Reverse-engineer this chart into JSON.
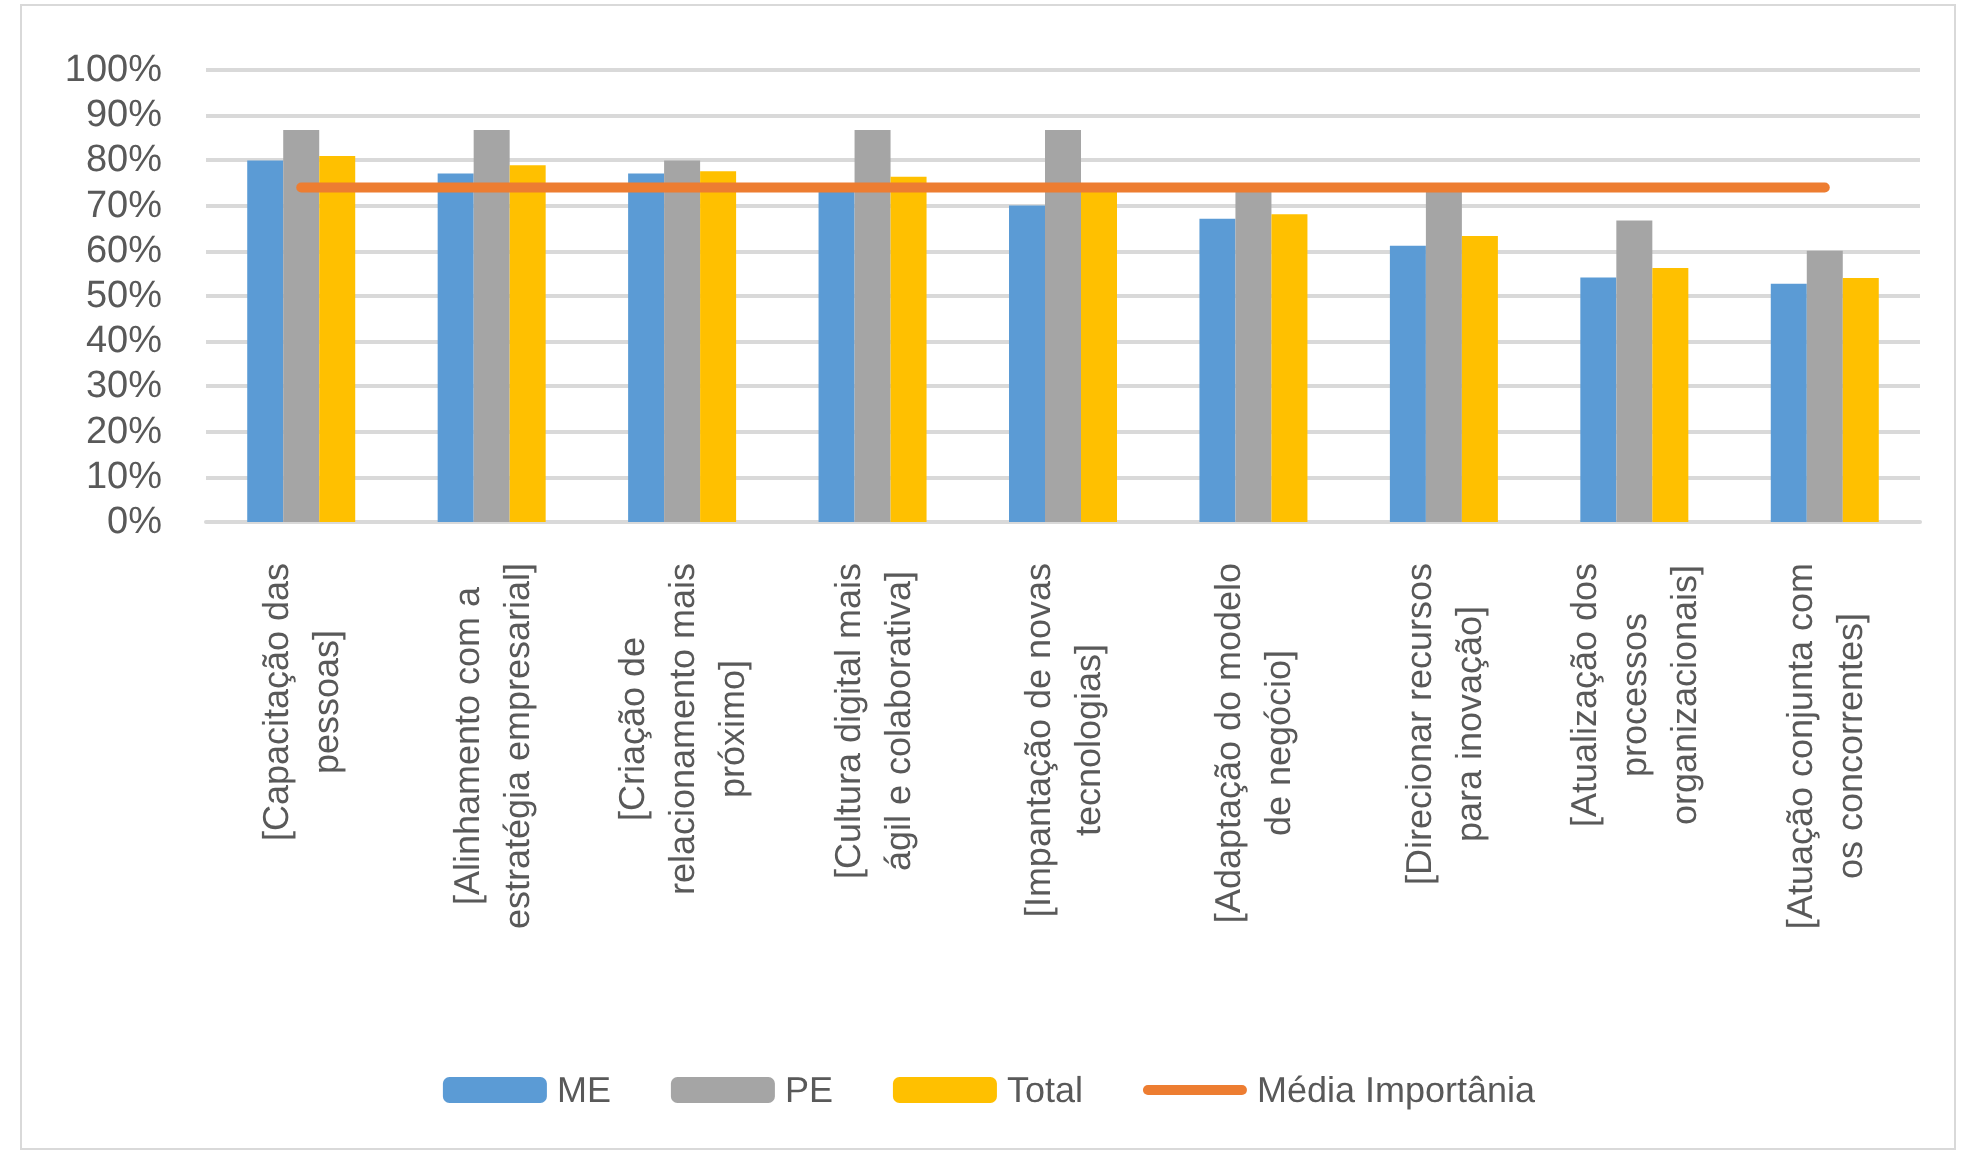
{
  "chart_data": {
    "type": "bar",
    "categories": [
      "[Capacitação das pessoas]",
      "[Alinhamento com a estratégia empresarial]",
      "[Criação de relacionamento mais próximo]",
      "[Cultura digital mais ágil e colaborativa]",
      "[Impantação de novas tecnologias]",
      "[Adaptação do modelo de negócio]",
      "[Direcionar recursos para inovação]",
      "[Atualização dos processos organizacionais]",
      "[Atuação conjunta com os concorrentes]"
    ],
    "series": [
      {
        "name": "ME",
        "color": "#5b9bd5",
        "values": [
          80,
          77.1,
          77.1,
          74,
          70,
          67.1,
          61.1,
          54.1,
          52.7
        ]
      },
      {
        "name": "PE",
        "color": "#a5a5a5",
        "values": [
          86.7,
          86.7,
          80,
          86.7,
          86.7,
          73.3,
          73.3,
          66.7,
          60
        ]
      },
      {
        "name": "Total",
        "color": "#ffc000",
        "values": [
          81,
          78.9,
          77.6,
          76.4,
          74,
          68.1,
          63.3,
          56.2,
          54
        ]
      },
      {
        "name": "Média Importânia",
        "type": "line",
        "color": "#ed7d31",
        "marker": "none",
        "line_style": "solid",
        "values": [
          74,
          74,
          74,
          74,
          74,
          74,
          74,
          74,
          74
        ]
      }
    ],
    "ylim": [
      0,
      100
    ],
    "yticks": [
      {
        "value": 0,
        "label": "0%"
      },
      {
        "value": 10,
        "label": "10%"
      },
      {
        "value": 20,
        "label": "20%"
      },
      {
        "value": 30,
        "label": "30%"
      },
      {
        "value": 40,
        "label": "40%"
      },
      {
        "value": 50,
        "label": "50%"
      },
      {
        "value": 60,
        "label": "60%"
      },
      {
        "value": 70,
        "label": "70%"
      },
      {
        "value": 80,
        "label": "80%"
      },
      {
        "value": 90,
        "label": "90%"
      },
      {
        "value": 100,
        "label": "100%"
      }
    ],
    "grid": "y",
    "legend": "bottom"
  }
}
